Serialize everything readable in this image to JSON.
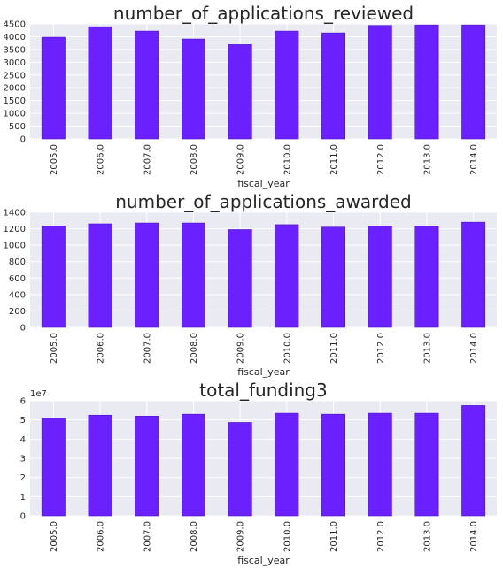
{
  "colors": {
    "bar": "#6a20ff",
    "bar_edge": "#4a14c0",
    "plot_bg": "#eaeaf2",
    "grid": "#ffffff"
  },
  "chart_data": [
    {
      "type": "bar",
      "title": "number_of_applications_reviewed",
      "xlabel": "fiscal_year",
      "ylabel": "",
      "categories": [
        "2005.0",
        "2006.0",
        "2007.0",
        "2008.0",
        "2009.0",
        "2010.0",
        "2011.0",
        "2012.0",
        "2013.0",
        "2014.0"
      ],
      "values": [
        3980,
        4390,
        4220,
        3910,
        3690,
        4220,
        4150,
        4440,
        4460,
        4460
      ],
      "ylim": [
        0,
        4500
      ],
      "yticks": [
        0,
        500,
        1000,
        1500,
        2000,
        2500,
        3000,
        3500,
        4000,
        4500
      ],
      "offset_text": "",
      "grid": true
    },
    {
      "type": "bar",
      "title": "number_of_applications_awarded",
      "xlabel": "fiscal_year",
      "ylabel": "",
      "categories": [
        "2005.0",
        "2006.0",
        "2007.0",
        "2008.0",
        "2009.0",
        "2010.0",
        "2011.0",
        "2012.0",
        "2013.0",
        "2014.0"
      ],
      "values": [
        1230,
        1260,
        1270,
        1270,
        1190,
        1250,
        1220,
        1230,
        1230,
        1280
      ],
      "ylim": [
        0,
        1400
      ],
      "yticks": [
        0,
        200,
        400,
        600,
        800,
        1000,
        1200,
        1400
      ],
      "offset_text": "",
      "grid": true
    },
    {
      "type": "bar",
      "title": "total_funding3",
      "xlabel": "fiscal_year",
      "ylabel": "",
      "categories": [
        "2005.0",
        "2006.0",
        "2007.0",
        "2008.0",
        "2009.0",
        "2010.0",
        "2011.0",
        "2012.0",
        "2013.0",
        "2014.0"
      ],
      "values": [
        51000000,
        52500000,
        52000000,
        53000000,
        48700000,
        53500000,
        53000000,
        53500000,
        53500000,
        57500000
      ],
      "ylim": [
        0,
        60000000
      ],
      "yticks": [
        0,
        10000000,
        20000000,
        30000000,
        40000000,
        50000000,
        60000000
      ],
      "ytick_labels": [
        "0",
        "1",
        "2",
        "3",
        "4",
        "5",
        "6"
      ],
      "offset_text": "1e7",
      "grid": true
    }
  ]
}
